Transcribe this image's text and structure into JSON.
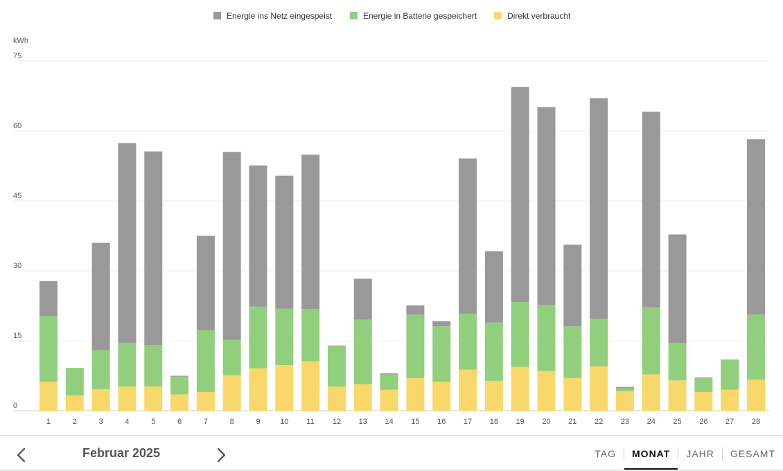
{
  "chart_data": {
    "type": "bar",
    "stacked": true,
    "unit": "kWh",
    "ylim": [
      0,
      75
    ],
    "yticks": [
      0,
      15,
      30,
      45,
      60,
      75
    ],
    "grid": true,
    "legend_position": "top-center",
    "categories": [
      "1",
      "2",
      "3",
      "4",
      "5",
      "6",
      "7",
      "8",
      "9",
      "10",
      "11",
      "12",
      "13",
      "14",
      "15",
      "16",
      "17",
      "18",
      "19",
      "20",
      "21",
      "22",
      "23",
      "24",
      "25",
      "26",
      "27",
      "28"
    ],
    "series": [
      {
        "name": "Direkt verbraucht",
        "color": "#f8d86a",
        "values": [
          6.2,
          3.3,
          4.6,
          5.2,
          5.2,
          3.5,
          4.0,
          7.6,
          9.1,
          9.8,
          10.6,
          5.2,
          5.7,
          4.5,
          7.0,
          6.2,
          8.8,
          6.4,
          9.4,
          8.5,
          7.0,
          9.5,
          4.2,
          7.8,
          6.5,
          4.0,
          4.5,
          6.7
        ]
      },
      {
        "name": "Energie in Batterie gespeichert",
        "color": "#92cf7c",
        "values": [
          14.1,
          5.9,
          8.4,
          9.3,
          8.9,
          3.8,
          13.3,
          7.6,
          13.2,
          12.1,
          11.2,
          8.8,
          13.8,
          3.3,
          13.6,
          11.9,
          12.0,
          12.5,
          13.9,
          14.2,
          11.1,
          10.2,
          0.6,
          14.4,
          8.0,
          3.2,
          6.5,
          13.9
        ]
      },
      {
        "name": "Energie ins Netz eingespeist",
        "color": "#999999",
        "values": [
          7.5,
          0,
          23.0,
          42.9,
          41.5,
          0.2,
          20.2,
          40.3,
          30.3,
          28.5,
          33.1,
          0,
          8.8,
          0.2,
          2.0,
          1.1,
          33.3,
          15.3,
          46.1,
          42.4,
          17.5,
          47.3,
          0.3,
          41.9,
          23.3,
          0,
          0,
          37.6
        ]
      }
    ],
    "legend_order": [
      "Energie ins Netz eingespeist",
      "Energie in Batterie gespeichert",
      "Direkt verbraucht"
    ]
  },
  "footer": {
    "period_label": "Februar 2025",
    "prev_icon": "chevron-left-icon",
    "next_icon": "chevron-right-icon",
    "tabs": [
      {
        "label": "TAG",
        "active": false
      },
      {
        "label": "MONAT",
        "active": true
      },
      {
        "label": "JAHR",
        "active": false
      },
      {
        "label": "GESAMT",
        "active": false
      }
    ]
  }
}
